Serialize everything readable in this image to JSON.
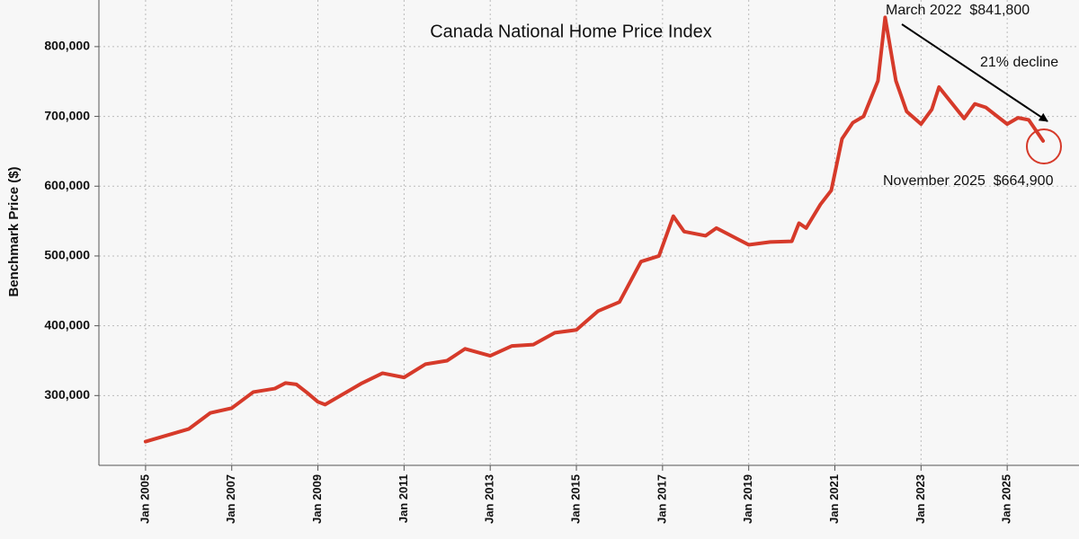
{
  "chart_data": {
    "type": "line",
    "title": "Canada National Home Price Index",
    "y_label": "Benchmark Price ($)",
    "annotations": [
      "March 2022  $841,800",
      "21% decline",
      "November 2025  $664,900"
    ],
    "x": [
      "Jan 2005",
      "Jan 2006",
      "Jul 2006",
      "Jan 2007",
      "Jul 2007",
      "Jan 2008",
      "Apr 2008",
      "Jul 2008",
      "Oct 2008",
      "Jan 2009",
      "Mar 2009",
      "Jan 2010",
      "Jul 2010",
      "Jan 2011",
      "Jul 2011",
      "Jan 2012",
      "Jun 2012",
      "Jan 2013",
      "Jul 2013",
      "Jan 2014",
      "Jul 2014",
      "Jan 2015",
      "Jul 2015",
      "Jan 2016",
      "Jul 2016",
      "Dec 2016",
      "Apr 2017",
      "Jul 2017",
      "Jan 2018",
      "Apr 2018",
      "Jan 2019",
      "Jul 2019",
      "Jan 2020",
      "Mar 2020",
      "May 2020",
      "Sep 2020",
      "Dec 2020",
      "Mar 2021",
      "Jun 2021",
      "Sep 2021",
      "Jan 2022",
      "Mar 2022",
      "Jun 2022",
      "Sep 2022",
      "Jan 2023",
      "Apr 2023",
      "Jun 2023",
      "Jan 2024",
      "Apr 2024",
      "Jul 2024",
      "Jan 2025",
      "Apr 2025",
      "Jul 2025",
      "Nov 2025"
    ],
    "series": [
      {
        "name": "Benchmark Price",
        "color": "#d63a2a",
        "values": [
          234000,
          252000,
          275000,
          282000,
          305000,
          310000,
          318000,
          316000,
          304000,
          291000,
          287000,
          317000,
          332000,
          326000,
          345000,
          350000,
          367000,
          357000,
          371000,
          373000,
          390000,
          394000,
          421000,
          434000,
          492000,
          500000,
          557000,
          535000,
          529000,
          540000,
          516000,
          520000,
          521000,
          547000,
          540000,
          574000,
          594000,
          668000,
          691000,
          700000,
          751000,
          841800,
          751000,
          707000,
          689000,
          710000,
          742000,
          697000,
          718000,
          713000,
          689000,
          698000,
          695000,
          664900
        ]
      }
    ],
    "xlim": [
      "Dec 2003",
      "Sep 2026"
    ],
    "xticks": [
      "Jan 2005",
      "Jan 2007",
      "Jan 2009",
      "Jan 2011",
      "Jan 2013",
      "Jan 2015",
      "Jan 2017",
      "Jan 2019",
      "Jan 2021",
      "Jan 2023",
      "Jan 2025"
    ],
    "ylim": [
      200000,
      866800
    ],
    "yticks": [
      {
        "value": 300000,
        "label": "300,000"
      },
      {
        "value": 400000,
        "label": "400,000"
      },
      {
        "value": 500000,
        "label": "500,000"
      },
      {
        "value": 600000,
        "label": "600,000"
      },
      {
        "value": 700000,
        "label": "700,000"
      },
      {
        "value": 800000,
        "label": "800,000"
      }
    ],
    "grid": true
  }
}
